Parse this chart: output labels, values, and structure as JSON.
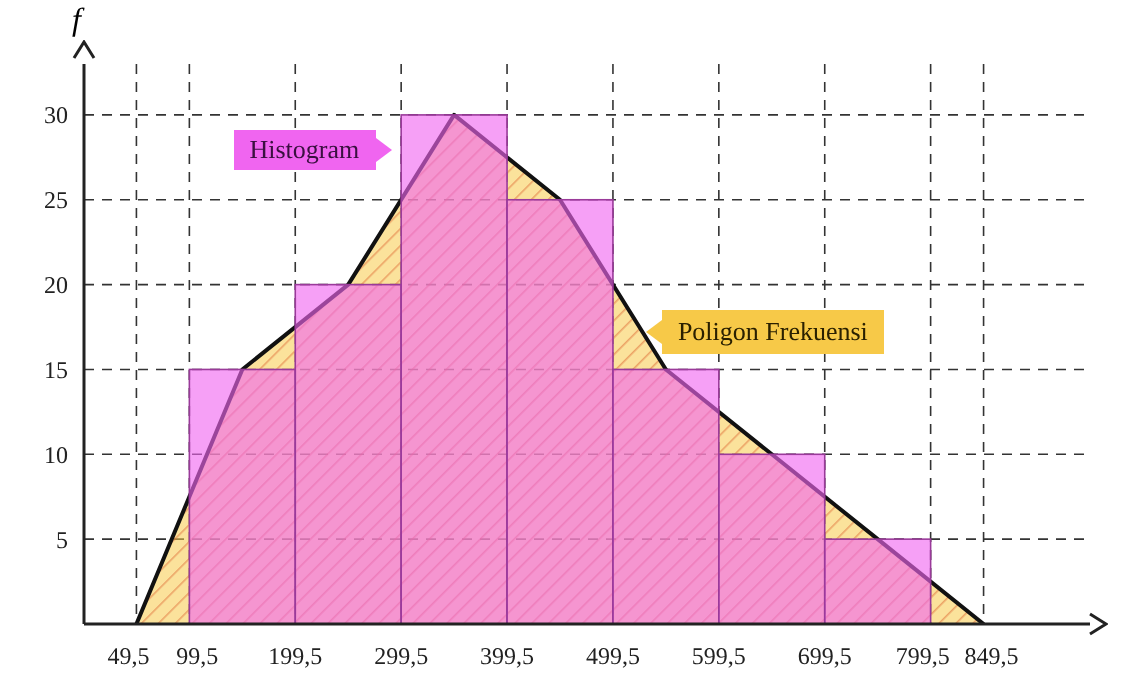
{
  "chart_data": {
    "type": "histogram",
    "ylabel": "f",
    "series": [
      {
        "type": "histogram",
        "name": "Histogram",
        "color": "#f065f0",
        "bins": [
          99.5,
          199.5,
          299.5,
          399.5,
          499.5,
          599.5,
          699.5,
          799.5
        ],
        "values": [
          15,
          20,
          30,
          25,
          15,
          10,
          5
        ]
      },
      {
        "type": "area",
        "name": "Poligon Frekuensi",
        "color": "#f7c948",
        "x": [
          49.5,
          149.5,
          249.5,
          349.5,
          449.5,
          549.5,
          649.5,
          749.5,
          849.5
        ],
        "values": [
          0,
          15,
          20,
          30,
          25,
          15,
          10,
          5,
          0
        ]
      }
    ],
    "xlim": [
      0,
      950
    ],
    "ylim": [
      0,
      33
    ],
    "xticks": [
      {
        "value": 49.5,
        "label": "49,5"
      },
      {
        "value": 99.5,
        "label": "99,5"
      },
      {
        "value": 199.5,
        "label": "199,5"
      },
      {
        "value": 299.5,
        "label": "299,5"
      },
      {
        "value": 399.5,
        "label": "399,5"
      },
      {
        "value": 499.5,
        "label": "499,5"
      },
      {
        "value": 599.5,
        "label": "599,5"
      },
      {
        "value": 699.5,
        "label": "699,5"
      },
      {
        "value": 799.5,
        "label": "799,5"
      },
      {
        "value": 849.5,
        "label": "849,5"
      }
    ],
    "yticks": [
      5,
      10,
      15,
      20,
      25,
      30
    ],
    "grid": true,
    "legend": false
  }
}
